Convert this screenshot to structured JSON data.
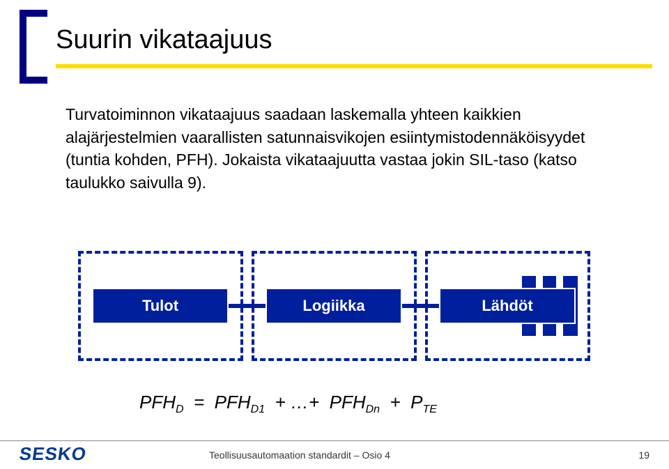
{
  "title": "Suurin vikataajuus",
  "body": "Turvatoiminnon vikataajuus saadaan laskemalla yhteen kaikkien alajärjestelmien vaarallisten satunnaisvikojen esiintymistodennäköisyydet (tuntia kohden, PFH). Jokaista vikataajuutta vastaa jokin SIL-taso (katso taulukko saivulla 9).",
  "diagram": {
    "boxes": [
      "Tulot",
      "Logiikka",
      "Lähdöt"
    ],
    "border_color": "#001f9c",
    "fill_color": "#001f9c",
    "text_color": "#ffffff"
  },
  "formula": {
    "lhs_base": "PFH",
    "lhs_sub": "D",
    "eq": "=",
    "t1_base": "PFH",
    "t1_sub": "D1",
    "plus1": "+ …+",
    "t2_base": "PFH",
    "t2_sub": "Dn",
    "plus2": "+",
    "t3_base": "P",
    "t3_sub": "TE"
  },
  "footer": {
    "logo": "SESKO",
    "text": "Teollisuusautomaation standardit – Osio 4",
    "page": "19"
  },
  "colors": {
    "bracket": "#000080",
    "underline": "#ffdd00",
    "box": "#001f9c",
    "logo": "#003a8c"
  }
}
